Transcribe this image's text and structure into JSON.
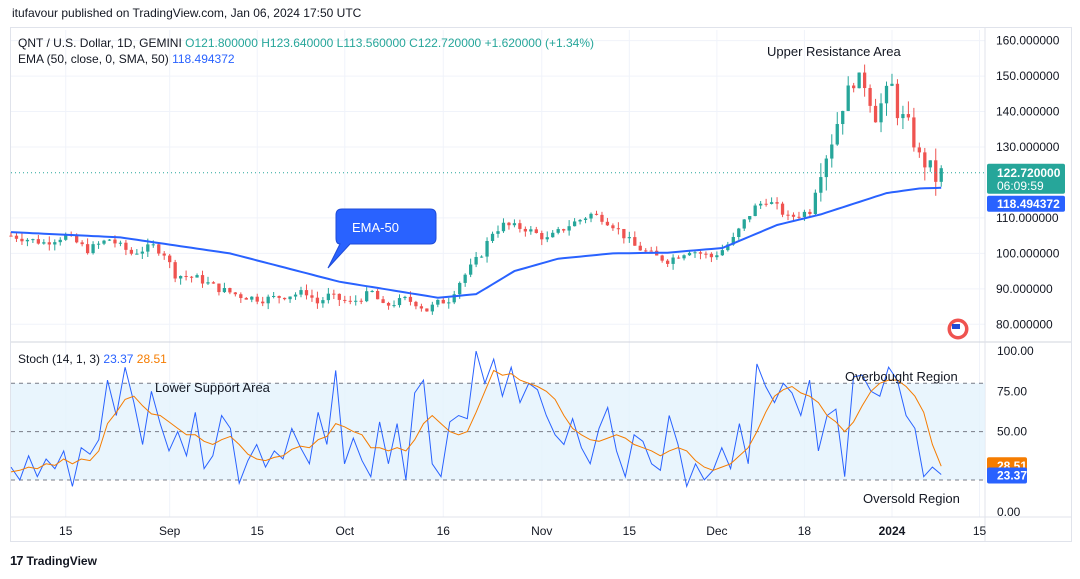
{
  "header": {
    "publisher": "itufavour published on TradingView.com, Jan 06, 2024 17:50 UTC"
  },
  "footer": {
    "brand": "TradingView",
    "logo_text": "17"
  },
  "colors": {
    "up": "#26a69a",
    "down": "#ef5350",
    "ema": "#2962ff",
    "stoch_k": "#2962ff",
    "stoch_d": "#f57c00",
    "band": "#e3f2fd",
    "grid": "#f0f3fa",
    "price_tag": "#26a69a",
    "ema_tag": "#2962ff"
  },
  "chart_data": [
    {
      "type": "candlestick",
      "title": "QNT / U.S. Dollar, 1D, GEMINI",
      "ohlc_readout": {
        "O": "O121.800000",
        "H": "H123.640000",
        "L": "L113.560000",
        "C": "C122.720000",
        "change": "+1.620000 (+1.34%)"
      },
      "indicator_label": "EMA (50, close, 0, SMA, 50)",
      "indicator_value": "118.494372",
      "ylim": [
        75,
        163
      ],
      "y_ticks": [
        "160.000000",
        "150.000000",
        "140.000000",
        "130.000000",
        "110.000000",
        "100.000000",
        "90.000000",
        "80.000000"
      ],
      "y_tick_values": [
        160,
        150,
        140,
        130,
        110,
        100,
        90,
        80
      ],
      "last_price": {
        "value": 122.72,
        "label": "122.720000",
        "countdown": "06:09:59"
      },
      "ema_last": {
        "value": 118.494372,
        "label": "118.494372"
      },
      "x_ticks": [
        "15",
        "Sep",
        "15",
        "Oct",
        "16",
        "Nov",
        "15",
        "Dec",
        "18",
        "2024",
        "15"
      ],
      "annotations": {
        "upper": "Upper Resistance Area",
        "ema": "EMA-50"
      },
      "close_path": [
        [
          0,
          105
        ],
        [
          6,
          103
        ],
        [
          10,
          105
        ],
        [
          14,
          101
        ],
        [
          18,
          104
        ],
        [
          22,
          100
        ],
        [
          26,
          102
        ],
        [
          28,
          100
        ],
        [
          30,
          94
        ],
        [
          34,
          93
        ],
        [
          38,
          90
        ],
        [
          42,
          88
        ],
        [
          46,
          87
        ],
        [
          50,
          88
        ],
        [
          54,
          89
        ],
        [
          56,
          86
        ],
        [
          58,
          88
        ],
        [
          62,
          86
        ],
        [
          66,
          89
        ],
        [
          68,
          85
        ],
        [
          72,
          87
        ],
        [
          74,
          86
        ],
        [
          76,
          84
        ],
        [
          78,
          86
        ],
        [
          80,
          87
        ],
        [
          82,
          92
        ],
        [
          86,
          100
        ],
        [
          88,
          106
        ],
        [
          90,
          108
        ],
        [
          94,
          107
        ],
        [
          98,
          104
        ],
        [
          102,
          108
        ],
        [
          106,
          111
        ],
        [
          108,
          110
        ],
        [
          110,
          108
        ],
        [
          114,
          102
        ],
        [
          118,
          99
        ],
        [
          120,
          98
        ],
        [
          124,
          101
        ],
        [
          126,
          100
        ],
        [
          128,
          99
        ],
        [
          130,
          101
        ],
        [
          132,
          104
        ],
        [
          134,
          109
        ],
        [
          136,
          113
        ],
        [
          138,
          115
        ],
        [
          140,
          113
        ],
        [
          142,
          110
        ],
        [
          144,
          111
        ],
        [
          146,
          112
        ],
        [
          148,
          124
        ],
        [
          150,
          132
        ],
        [
          152,
          142
        ],
        [
          154,
          149
        ],
        [
          156,
          148
        ],
        [
          158,
          139
        ],
        [
          160,
          145
        ],
        [
          161,
          147
        ],
        [
          162,
          140
        ],
        [
          164,
          136
        ],
        [
          166,
          127
        ],
        [
          168,
          124
        ],
        [
          169,
          121.1
        ],
        [
          170,
          122.72
        ]
      ],
      "ema_path": [
        [
          0,
          106
        ],
        [
          20,
          104.5
        ],
        [
          40,
          100
        ],
        [
          60,
          92
        ],
        [
          78,
          87.5
        ],
        [
          85,
          88.5
        ],
        [
          92,
          95
        ],
        [
          100,
          98.5
        ],
        [
          110,
          100
        ],
        [
          120,
          100.2
        ],
        [
          130,
          101.5
        ],
        [
          140,
          108
        ],
        [
          148,
          111
        ],
        [
          154,
          114
        ],
        [
          160,
          117
        ],
        [
          166,
          118.3
        ],
        [
          170,
          118.49
        ]
      ],
      "tick_positions": [
        10,
        29,
        45,
        61,
        79,
        97,
        113,
        129,
        145,
        161,
        177
      ],
      "x_domain": [
        0,
        178
      ]
    },
    {
      "type": "line",
      "title": "Stoch (14, 1, 3)",
      "series": [
        {
          "name": "%K",
          "value_label": "23.37",
          "values": [
            28,
            20,
            35,
            22,
            33,
            27,
            38,
            16,
            40,
            36,
            45,
            82,
            60,
            90,
            68,
            42,
            75,
            55,
            38,
            50,
            35,
            62,
            27,
            35,
            60,
            52,
            18,
            32,
            42,
            28,
            38,
            33,
            52,
            40,
            30,
            62,
            42,
            88,
            30,
            46,
            32,
            22,
            56,
            30,
            55,
            20,
            74,
            82,
            30,
            22,
            56,
            60,
            58,
            100,
            80,
            95,
            72,
            90,
            68,
            80,
            76,
            60,
            48,
            42,
            58,
            40,
            30,
            52,
            65,
            38,
            22,
            48,
            44,
            30,
            26,
            60,
            42,
            16,
            30,
            20,
            26,
            40,
            27,
            55,
            30,
            92,
            78,
            68,
            80,
            74,
            60,
            82,
            38,
            60,
            64,
            22,
            84,
            85,
            75,
            72,
            90,
            82,
            60,
            52,
            22,
            28,
            23.37
          ]
        },
        {
          "name": "%D",
          "value_label": "28.51",
          "values": [
            25,
            26,
            28,
            27,
            30,
            29,
            33,
            30,
            33,
            32,
            38,
            55,
            62,
            70,
            72,
            66,
            61,
            60,
            56,
            52,
            48,
            48,
            44,
            42,
            45,
            47,
            42,
            36,
            33,
            32,
            34,
            35,
            39,
            41,
            40,
            45,
            47,
            55,
            53,
            50,
            48,
            40,
            40,
            38,
            40,
            38,
            45,
            55,
            60,
            55,
            50,
            48,
            50,
            62,
            75,
            88,
            85,
            86,
            82,
            80,
            78,
            75,
            70,
            60,
            52,
            48,
            45,
            44,
            46,
            48,
            46,
            42,
            40,
            38,
            35,
            38,
            40,
            38,
            32,
            28,
            26,
            28,
            30,
            35,
            40,
            50,
            62,
            72,
            76,
            78,
            74,
            72,
            68,
            60,
            56,
            50,
            56,
            66,
            75,
            80,
            82,
            82,
            78,
            72,
            62,
            42,
            28.51
          ]
        }
      ],
      "ylim": [
        -3,
        105
      ],
      "y_ticks": [
        "100.00",
        "75.00",
        "50.00",
        "0.00"
      ],
      "y_tick_values": [
        100,
        75,
        50,
        0
      ],
      "bands": [
        80,
        50,
        20
      ],
      "annotations": {
        "lower": "Lower Support Area",
        "overbought": "Overbought Region",
        "oversold": "Oversold Region"
      }
    }
  ]
}
